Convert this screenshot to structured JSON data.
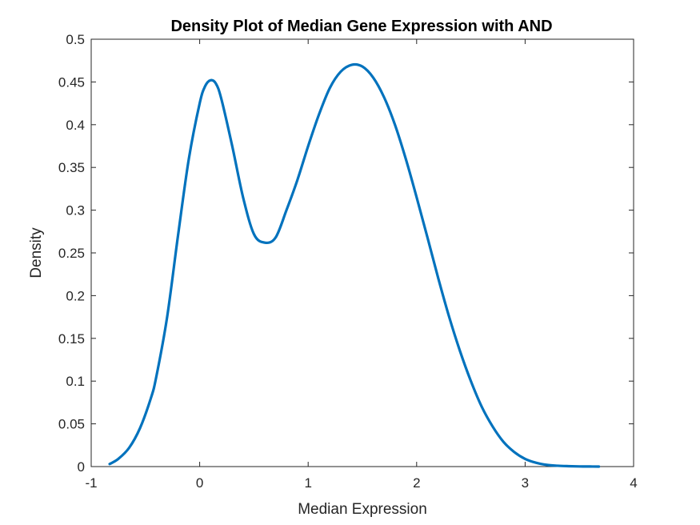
{
  "chart_data": {
    "type": "line",
    "title": "Density Plot of Median Gene Expression with AND",
    "xlabel": "Median Expression",
    "ylabel": "Density",
    "xlim": [
      -1,
      4
    ],
    "ylim": [
      0,
      0.5
    ],
    "xticks": [
      -1,
      0,
      1,
      2,
      3,
      4
    ],
    "yticks": [
      0,
      0.05,
      0.1,
      0.15,
      0.2,
      0.25,
      0.3,
      0.35,
      0.4,
      0.45,
      0.5
    ],
    "grid": false,
    "box": true,
    "series": [
      {
        "color": "#0072BD",
        "x": [
          -0.83,
          -0.75,
          -0.65,
          -0.55,
          -0.45,
          -0.4,
          -0.3,
          -0.2,
          -0.1,
          0.0,
          0.05,
          0.1,
          0.15,
          0.2,
          0.3,
          0.4,
          0.5,
          0.6,
          0.7,
          0.8,
          0.9,
          1.0,
          1.1,
          1.2,
          1.3,
          1.4,
          1.5,
          1.6,
          1.7,
          1.8,
          1.9,
          2.0,
          2.1,
          2.2,
          2.3,
          2.4,
          2.5,
          2.6,
          2.7,
          2.8,
          2.9,
          3.0,
          3.1,
          3.2,
          3.3,
          3.4,
          3.5,
          3.6,
          3.68
        ],
        "y": [
          0.003,
          0.009,
          0.022,
          0.045,
          0.08,
          0.105,
          0.175,
          0.27,
          0.36,
          0.425,
          0.445,
          0.452,
          0.448,
          0.43,
          0.375,
          0.315,
          0.272,
          0.262,
          0.268,
          0.3,
          0.335,
          0.375,
          0.412,
          0.443,
          0.462,
          0.47,
          0.468,
          0.455,
          0.432,
          0.4,
          0.36,
          0.315,
          0.268,
          0.22,
          0.175,
          0.135,
          0.1,
          0.07,
          0.047,
          0.029,
          0.017,
          0.009,
          0.0045,
          0.002,
          0.001,
          0.0005,
          0.0002,
          0.0001,
          0.0
        ]
      }
    ]
  }
}
